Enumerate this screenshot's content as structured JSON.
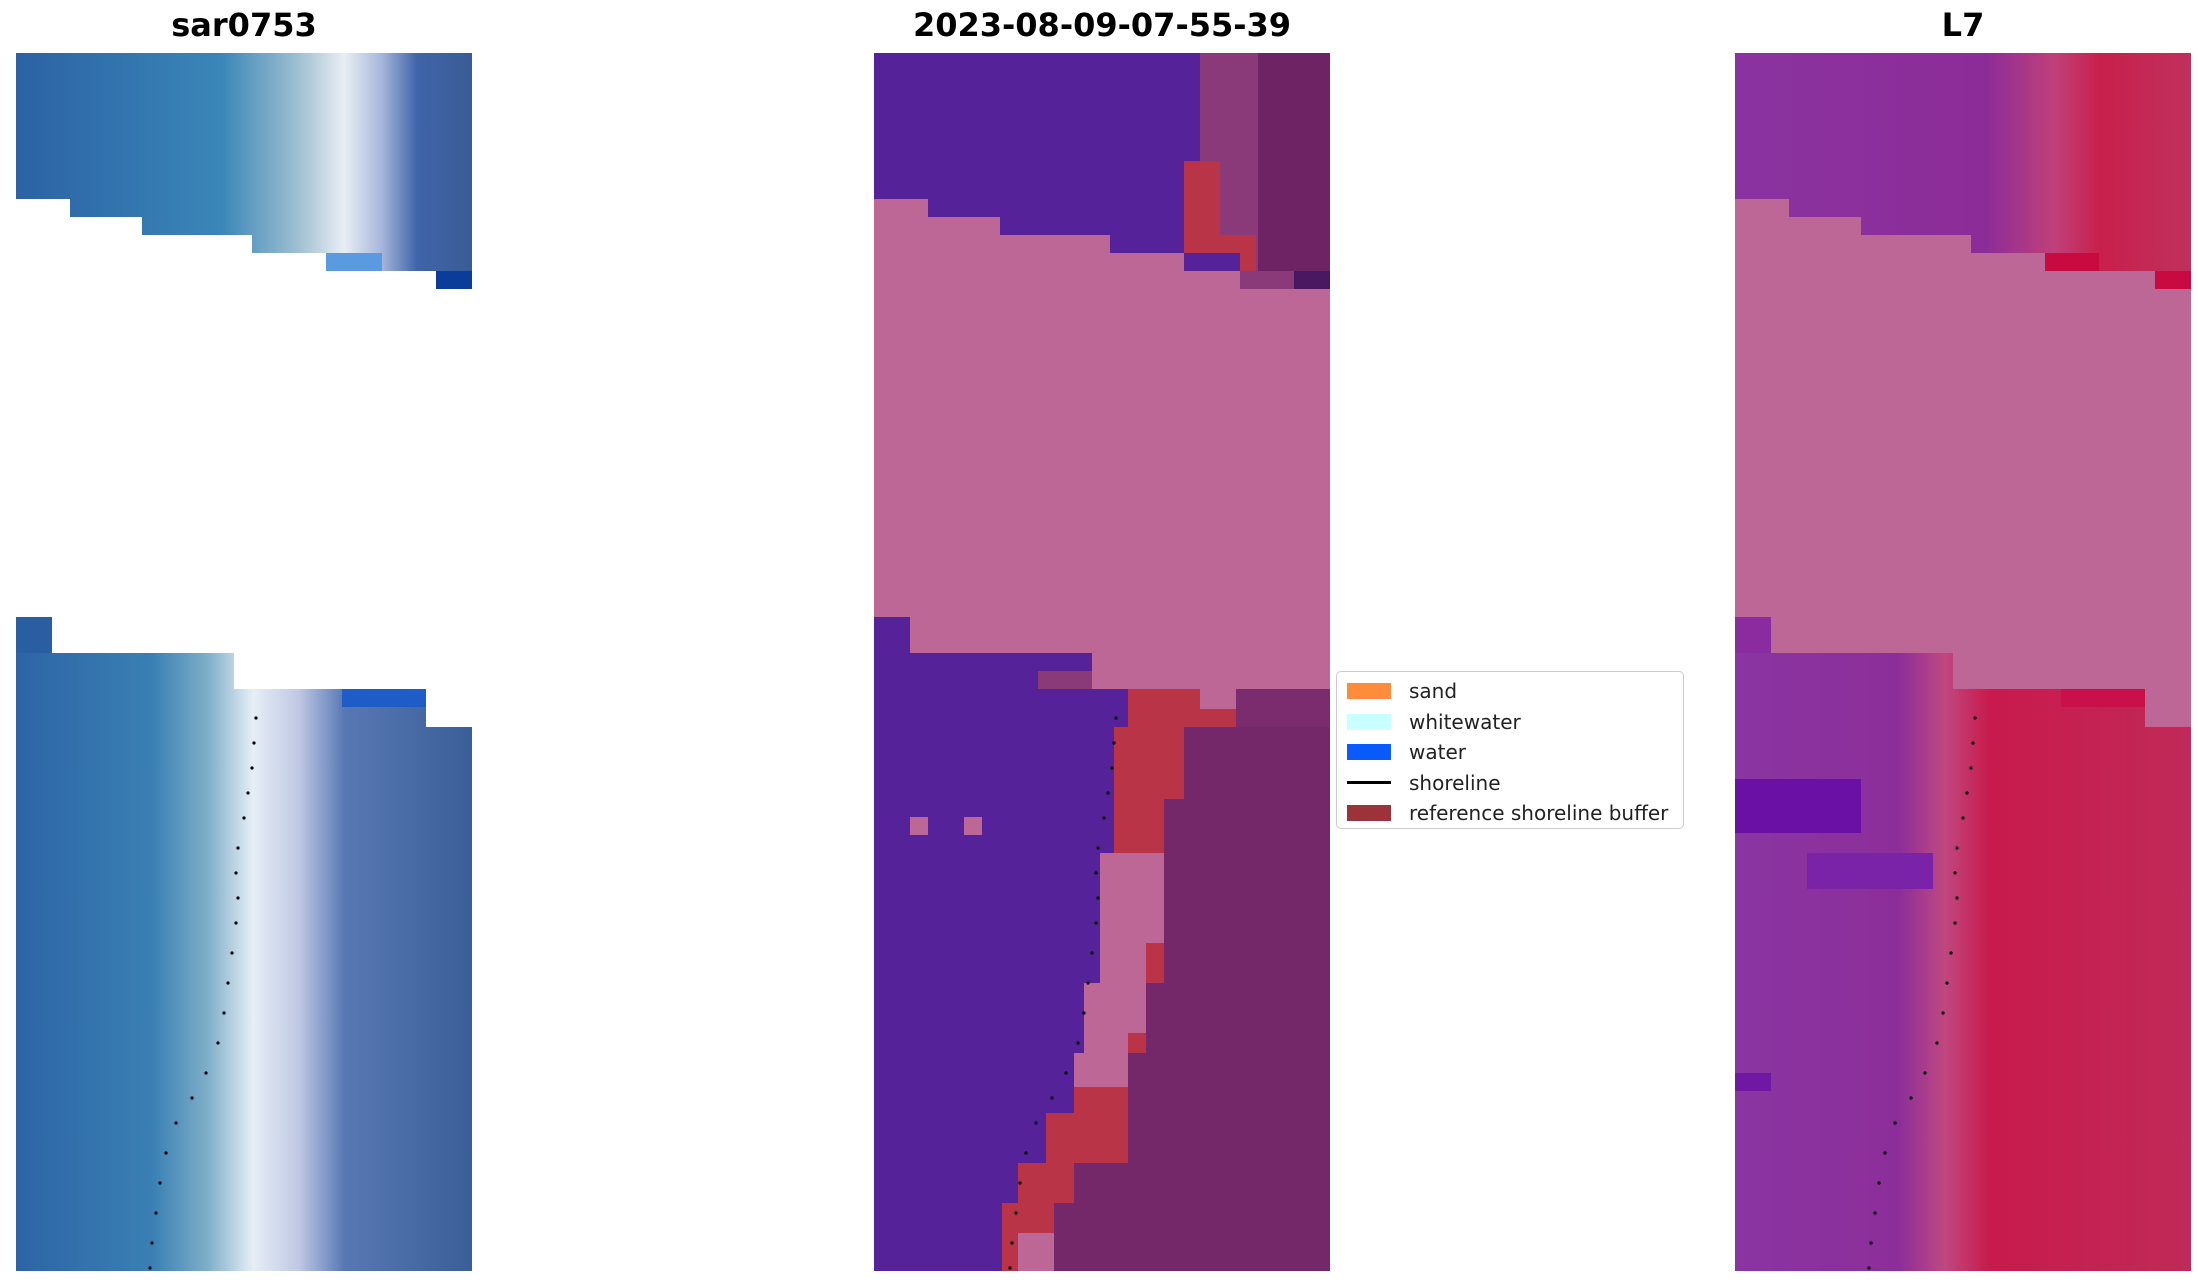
{
  "panels": [
    {
      "title": "sar0753"
    },
    {
      "title": "2023-08-09-07-55-39"
    },
    {
      "title": "L7"
    }
  ],
  "legend": {
    "entries": [
      {
        "label": "sand",
        "type": "patch",
        "color": "#ff8c3a"
      },
      {
        "label": "whitewater",
        "type": "patch",
        "color": "#c8ffff"
      },
      {
        "label": "water",
        "type": "patch",
        "color": "#0a5bff"
      },
      {
        "label": "shoreline",
        "type": "line",
        "color": "#000000"
      },
      {
        "label": "reference shoreline buffer",
        "type": "patch",
        "color": "#9a343a"
      }
    ]
  },
  "colors": {
    "rgb_water": "#2d6aa8",
    "rgb_whitewater": "#e8eef5",
    "class_water": "#56229a",
    "class_nodata": "#bc6796",
    "class_buffer": "#ba3448",
    "class_sand": "#6b2462",
    "ndwi_low": "#8a33a0",
    "ndwi_high": "#c81848"
  }
}
